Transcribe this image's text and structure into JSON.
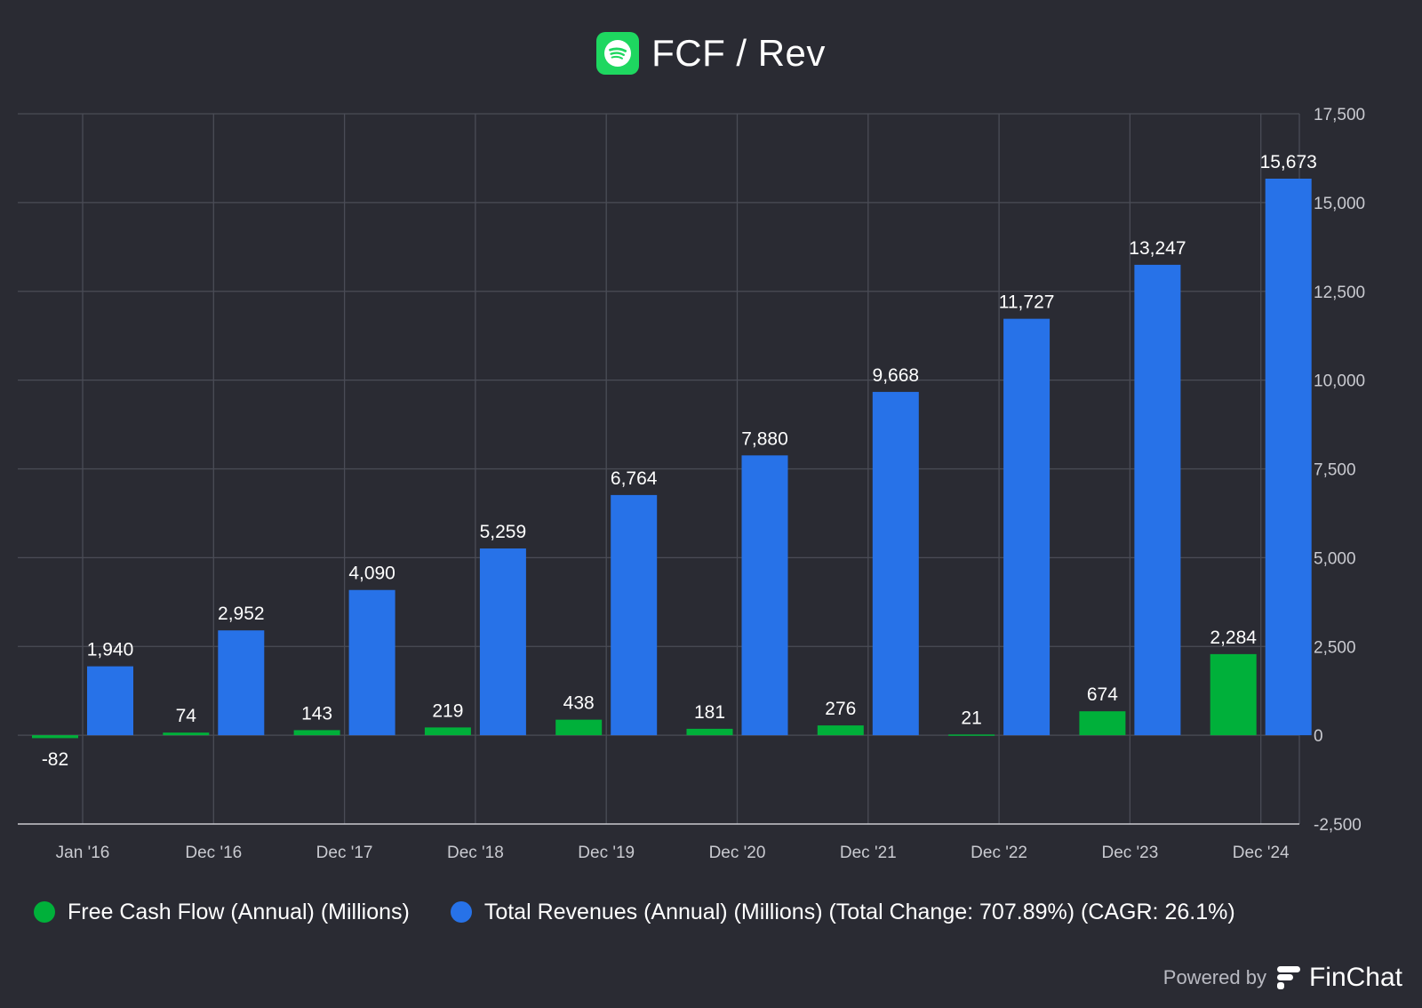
{
  "title": "FCF / Rev",
  "colors": {
    "fcf": "#00b03a",
    "revenue": "#2772e8",
    "logo": "#1ed760",
    "background": "#2a2b33"
  },
  "chart_data": {
    "type": "bar",
    "title": "FCF / Rev",
    "categories": [
      "Jan '16",
      "Dec '16",
      "Dec '17",
      "Dec '18",
      "Dec '19",
      "Dec '20",
      "Dec '21",
      "Dec '22",
      "Dec '23",
      "Dec '24"
    ],
    "series": [
      {
        "name": "Free Cash Flow (Annual) (Millions)",
        "color": "#00b03a",
        "values": [
          -82,
          74,
          143,
          219,
          438,
          181,
          276,
          21,
          674,
          2284
        ],
        "labels": [
          "-82",
          "74",
          "143",
          "219",
          "438",
          "181",
          "276",
          "21",
          "674",
          "2,284"
        ]
      },
      {
        "name": "Total Revenues (Annual) (Millions) (Total Change: 707.89%) (CAGR: 26.1%)",
        "color": "#2772e8",
        "values": [
          1940,
          2952,
          4090,
          5259,
          6764,
          7880,
          9668,
          11727,
          13247,
          15673
        ],
        "labels": [
          "1,940",
          "2,952",
          "4,090",
          "5,259",
          "6,764",
          "7,880",
          "9,668",
          "11,727",
          "13,247",
          "15,673"
        ]
      }
    ],
    "ylim": [
      -2500,
      17500
    ],
    "yticks": [
      -2500,
      0,
      2500,
      5000,
      7500,
      10000,
      12500,
      15000,
      17500
    ],
    "ytick_labels": [
      "-2,500",
      "0",
      "2,500",
      "5,000",
      "7,500",
      "10,000",
      "12,500",
      "15,000",
      "17,500"
    ],
    "y_axis_side": "right",
    "grid": true,
    "legend": "bottom-left"
  },
  "footer": {
    "powered_by": "Powered by",
    "brand": "FinChat"
  }
}
